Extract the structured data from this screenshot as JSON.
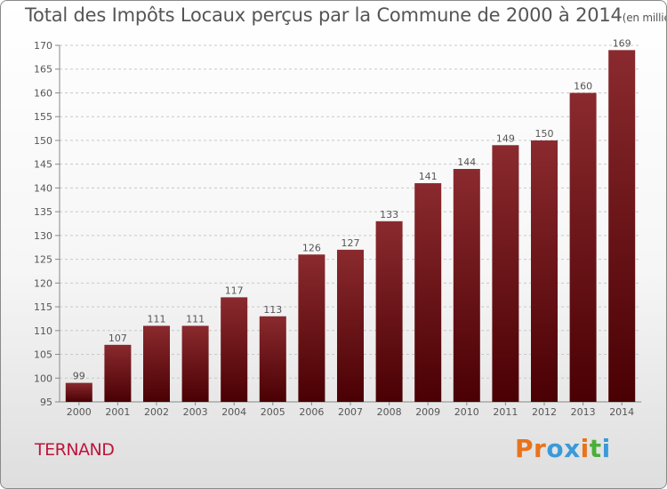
{
  "chart_data": {
    "type": "bar",
    "title": "Total des Impôts Locaux perçus par la Commune de 2000 à 2014",
    "subtitle": "(en milliers d'€)",
    "categories": [
      "2000",
      "2001",
      "2002",
      "2003",
      "2004",
      "2005",
      "2006",
      "2007",
      "2008",
      "2009",
      "2010",
      "2011",
      "2012",
      "2013",
      "2014"
    ],
    "values": [
      99,
      107,
      111,
      111,
      117,
      113,
      126,
      127,
      133,
      141,
      144,
      149,
      150,
      160,
      169
    ],
    "ylim": [
      95,
      170
    ],
    "yticks": [
      95,
      100,
      105,
      110,
      115,
      120,
      125,
      130,
      135,
      140,
      145,
      150,
      155,
      160,
      165,
      170
    ],
    "xlabel": "",
    "ylabel": "",
    "grid": "horizontal dashed"
  },
  "commune": "TERNAND",
  "logo": {
    "letters": [
      "P",
      "r",
      "o",
      "x",
      "i",
      "t",
      "i"
    ],
    "colors": [
      "#e8731a",
      "#e8731a",
      "#3a9ad9",
      "#3a9ad9",
      "#e8731a",
      "#4cae3a",
      "#3a9ad9"
    ]
  },
  "colors": {
    "bar_top": "#8a2a2e",
    "bar_bottom": "#4a0003",
    "text": "#555555",
    "commune": "#c0143c"
  }
}
